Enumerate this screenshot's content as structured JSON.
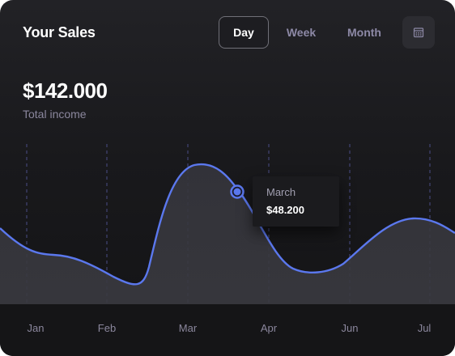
{
  "header": {
    "title": "Your Sales",
    "segments": [
      "Day",
      "Week",
      "Month"
    ],
    "active_segment": "Day",
    "calendar_icon": "calendar-icon"
  },
  "summary": {
    "amount": "$142.000",
    "label": "Total income"
  },
  "tooltip": {
    "label": "March",
    "value": "$48.200"
  },
  "colors": {
    "accent": "#5b78ee",
    "background": "#1a1a1d"
  },
  "chart_data": {
    "type": "area",
    "categories": [
      "Jan",
      "Feb",
      "Mar",
      "Apr",
      "Jun",
      "Jul"
    ],
    "grid": "vertical-dashed",
    "highlight": {
      "label": "March",
      "value": 48200
    }
  }
}
